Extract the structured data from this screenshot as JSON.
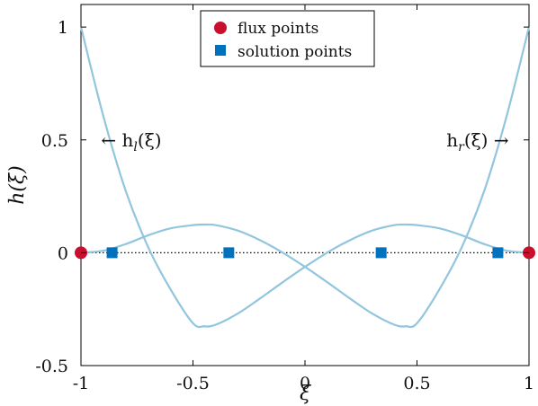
{
  "chart_data": {
    "type": "line",
    "title": "",
    "xlabel": "ξ",
    "ylabel": "h(ξ)",
    "xlim": [
      -1,
      1
    ],
    "ylim": [
      -0.5,
      1.1
    ],
    "x_ticks": [
      {
        "value": -1,
        "label": "-1"
      },
      {
        "value": -0.5,
        "label": "-0.5"
      },
      {
        "value": 0,
        "label": "0"
      },
      {
        "value": 0.5,
        "label": "0.5"
      },
      {
        "value": 1,
        "label": "1"
      }
    ],
    "y_ticks": [
      {
        "value": -0.5,
        "label": "-0.5"
      },
      {
        "value": 0,
        "label": "0"
      },
      {
        "value": 0.5,
        "label": "0.5"
      },
      {
        "value": 1,
        "label": "1"
      }
    ],
    "grid": false,
    "legend_position": "top-center",
    "series": [
      {
        "label": "h_l(ξ)",
        "color": "#92c5de",
        "x": [
          -1.0,
          -0.9,
          -0.8,
          -0.7,
          -0.6,
          -0.5,
          -0.45,
          -0.4,
          -0.3,
          -0.2,
          -0.1,
          0.0,
          0.1,
          0.2,
          0.3,
          0.4,
          0.45,
          0.5,
          0.6,
          0.7,
          0.8,
          0.9,
          1.0
        ],
        "y": [
          1.0,
          0.6047,
          0.2736,
          0.0247,
          -0.1624,
          -0.3125,
          -0.3259,
          -0.3195,
          -0.2695,
          -0.2022,
          -0.1311,
          -0.0625,
          0.0009,
          0.0554,
          0.0982,
          0.1225,
          0.1248,
          0.1224,
          0.1083,
          0.0773,
          0.0384,
          0.0092,
          0.0
        ]
      },
      {
        "label": "h_r(ξ)",
        "color": "#92c5de",
        "x": [
          -1.0,
          -0.9,
          -0.8,
          -0.7,
          -0.6,
          -0.5,
          -0.45,
          -0.4,
          -0.3,
          -0.2,
          -0.1,
          0.0,
          0.1,
          0.2,
          0.3,
          0.4,
          0.45,
          0.5,
          0.6,
          0.7,
          0.8,
          0.9,
          1.0
        ],
        "y": [
          0.0,
          0.0092,
          0.0384,
          0.0773,
          0.1083,
          0.1224,
          0.1248,
          0.1225,
          0.0982,
          0.0554,
          0.0009,
          -0.0625,
          -0.1311,
          -0.2022,
          -0.2695,
          -0.3195,
          -0.3259,
          -0.3125,
          -0.1624,
          0.0247,
          0.2736,
          0.6047,
          1.0
        ]
      }
    ],
    "reference_line": {
      "y": 0,
      "style": "dotted",
      "color": "#000000"
    },
    "flux_points": {
      "name": "flux points",
      "color": "#c8102e",
      "x": [
        -1,
        1
      ],
      "y": [
        0,
        0
      ]
    },
    "solution_points": {
      "name": "solution points",
      "color": "#0072bd",
      "x": [
        -0.8611,
        -0.34,
        0.34,
        0.8611
      ],
      "y": [
        0,
        0,
        0,
        0
      ]
    },
    "annotations": [
      {
        "text_prefix": "← h",
        "subscript": "l",
        "suffix": "(ξ)",
        "x": -0.91,
        "y": 0.5,
        "anchor": "start"
      },
      {
        "text_prefix": "h",
        "subscript": "r",
        "suffix": "(ξ) →",
        "x": 0.91,
        "y": 0.5,
        "anchor": "end"
      }
    ]
  }
}
